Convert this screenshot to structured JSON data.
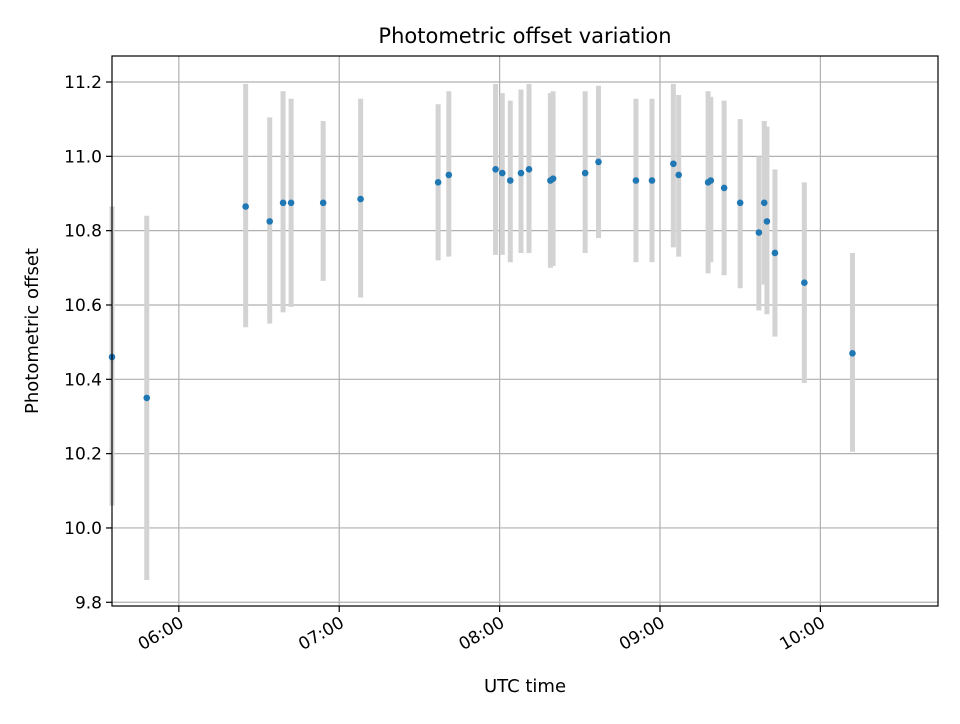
{
  "chart_data": {
    "type": "scatter",
    "title": "Photometric offset variation",
    "xlabel": "UTC time",
    "ylabel": "Photometric offset",
    "xlim": [
      "05:35",
      "10:44"
    ],
    "ylim": [
      9.79,
      11.27
    ],
    "xticks": [
      "06:00",
      "07:00",
      "08:00",
      "09:00",
      "10:00"
    ],
    "yticks": [
      9.8,
      10.0,
      10.2,
      10.4,
      10.6,
      10.8,
      11.0,
      11.2
    ],
    "ytick_labels": [
      "9.8",
      "10.0",
      "10.2",
      "10.4",
      "10.6",
      "10.8",
      "11.0",
      "11.2"
    ],
    "grid": true,
    "colors": {
      "points": "#1f77b4",
      "errorbars": "#d3d3d3",
      "grid": "#b0b0b0"
    },
    "series": [
      {
        "points": [
          {
            "x": "05:35:00",
            "y": 10.46,
            "lo": 10.06,
            "hi": 10.865
          },
          {
            "x": "05:48:00",
            "y": 10.35,
            "lo": 9.86,
            "hi": 10.84
          },
          {
            "x": "06:25:00",
            "y": 10.865,
            "lo": 10.54,
            "hi": 11.195
          },
          {
            "x": "06:34:00",
            "y": 10.825,
            "lo": 10.55,
            "hi": 11.105
          },
          {
            "x": "06:39:00",
            "y": 10.875,
            "lo": 10.58,
            "hi": 11.175
          },
          {
            "x": "06:42:00",
            "y": 10.875,
            "lo": 10.595,
            "hi": 11.155
          },
          {
            "x": "06:54:00",
            "y": 10.875,
            "lo": 10.665,
            "hi": 11.095
          },
          {
            "x": "07:08:00",
            "y": 10.885,
            "lo": 10.62,
            "hi": 11.155
          },
          {
            "x": "07:37:00",
            "y": 10.93,
            "lo": 10.72,
            "hi": 11.14
          },
          {
            "x": "07:41:00",
            "y": 10.95,
            "lo": 10.73,
            "hi": 11.175
          },
          {
            "x": "07:58:30",
            "y": 10.965,
            "lo": 10.735,
            "hi": 11.195
          },
          {
            "x": "08:01:00",
            "y": 10.955,
            "lo": 10.735,
            "hi": 11.17
          },
          {
            "x": "08:04:00",
            "y": 10.935,
            "lo": 10.715,
            "hi": 11.15
          },
          {
            "x": "08:08:00",
            "y": 10.955,
            "lo": 10.74,
            "hi": 11.18
          },
          {
            "x": "08:11:00",
            "y": 10.965,
            "lo": 10.74,
            "hi": 11.195
          },
          {
            "x": "08:19:00",
            "y": 10.935,
            "lo": 10.7,
            "hi": 11.17
          },
          {
            "x": "08:20:00",
            "y": 10.94,
            "lo": 10.705,
            "hi": 11.175
          },
          {
            "x": "08:32:00",
            "y": 10.955,
            "lo": 10.74,
            "hi": 11.175
          },
          {
            "x": "08:37:00",
            "y": 10.985,
            "lo": 10.78,
            "hi": 11.19
          },
          {
            "x": "08:51:00",
            "y": 10.935,
            "lo": 10.715,
            "hi": 11.155
          },
          {
            "x": "08:57:00",
            "y": 10.935,
            "lo": 10.715,
            "hi": 11.155
          },
          {
            "x": "09:05:00",
            "y": 10.98,
            "lo": 10.755,
            "hi": 11.195
          },
          {
            "x": "09:07:00",
            "y": 10.95,
            "lo": 10.73,
            "hi": 11.165
          },
          {
            "x": "09:18:00",
            "y": 10.93,
            "lo": 10.685,
            "hi": 11.175
          },
          {
            "x": "09:19:00",
            "y": 10.935,
            "lo": 10.715,
            "hi": 11.16
          },
          {
            "x": "09:24:00",
            "y": 10.915,
            "lo": 10.68,
            "hi": 11.15
          },
          {
            "x": "09:30:00",
            "y": 10.875,
            "lo": 10.645,
            "hi": 11.1
          },
          {
            "x": "09:37:00",
            "y": 10.795,
            "lo": 10.585,
            "hi": 11.0
          },
          {
            "x": "09:39:00",
            "y": 10.875,
            "lo": 10.655,
            "hi": 11.095
          },
          {
            "x": "09:40:00",
            "y": 10.825,
            "lo": 10.575,
            "hi": 11.08
          },
          {
            "x": "09:43:00",
            "y": 10.74,
            "lo": 10.515,
            "hi": 10.965
          },
          {
            "x": "09:54:00",
            "y": 10.66,
            "lo": 10.39,
            "hi": 10.93
          },
          {
            "x": "10:12:00",
            "y": 10.47,
            "lo": 10.205,
            "hi": 10.74
          }
        ]
      }
    ]
  }
}
